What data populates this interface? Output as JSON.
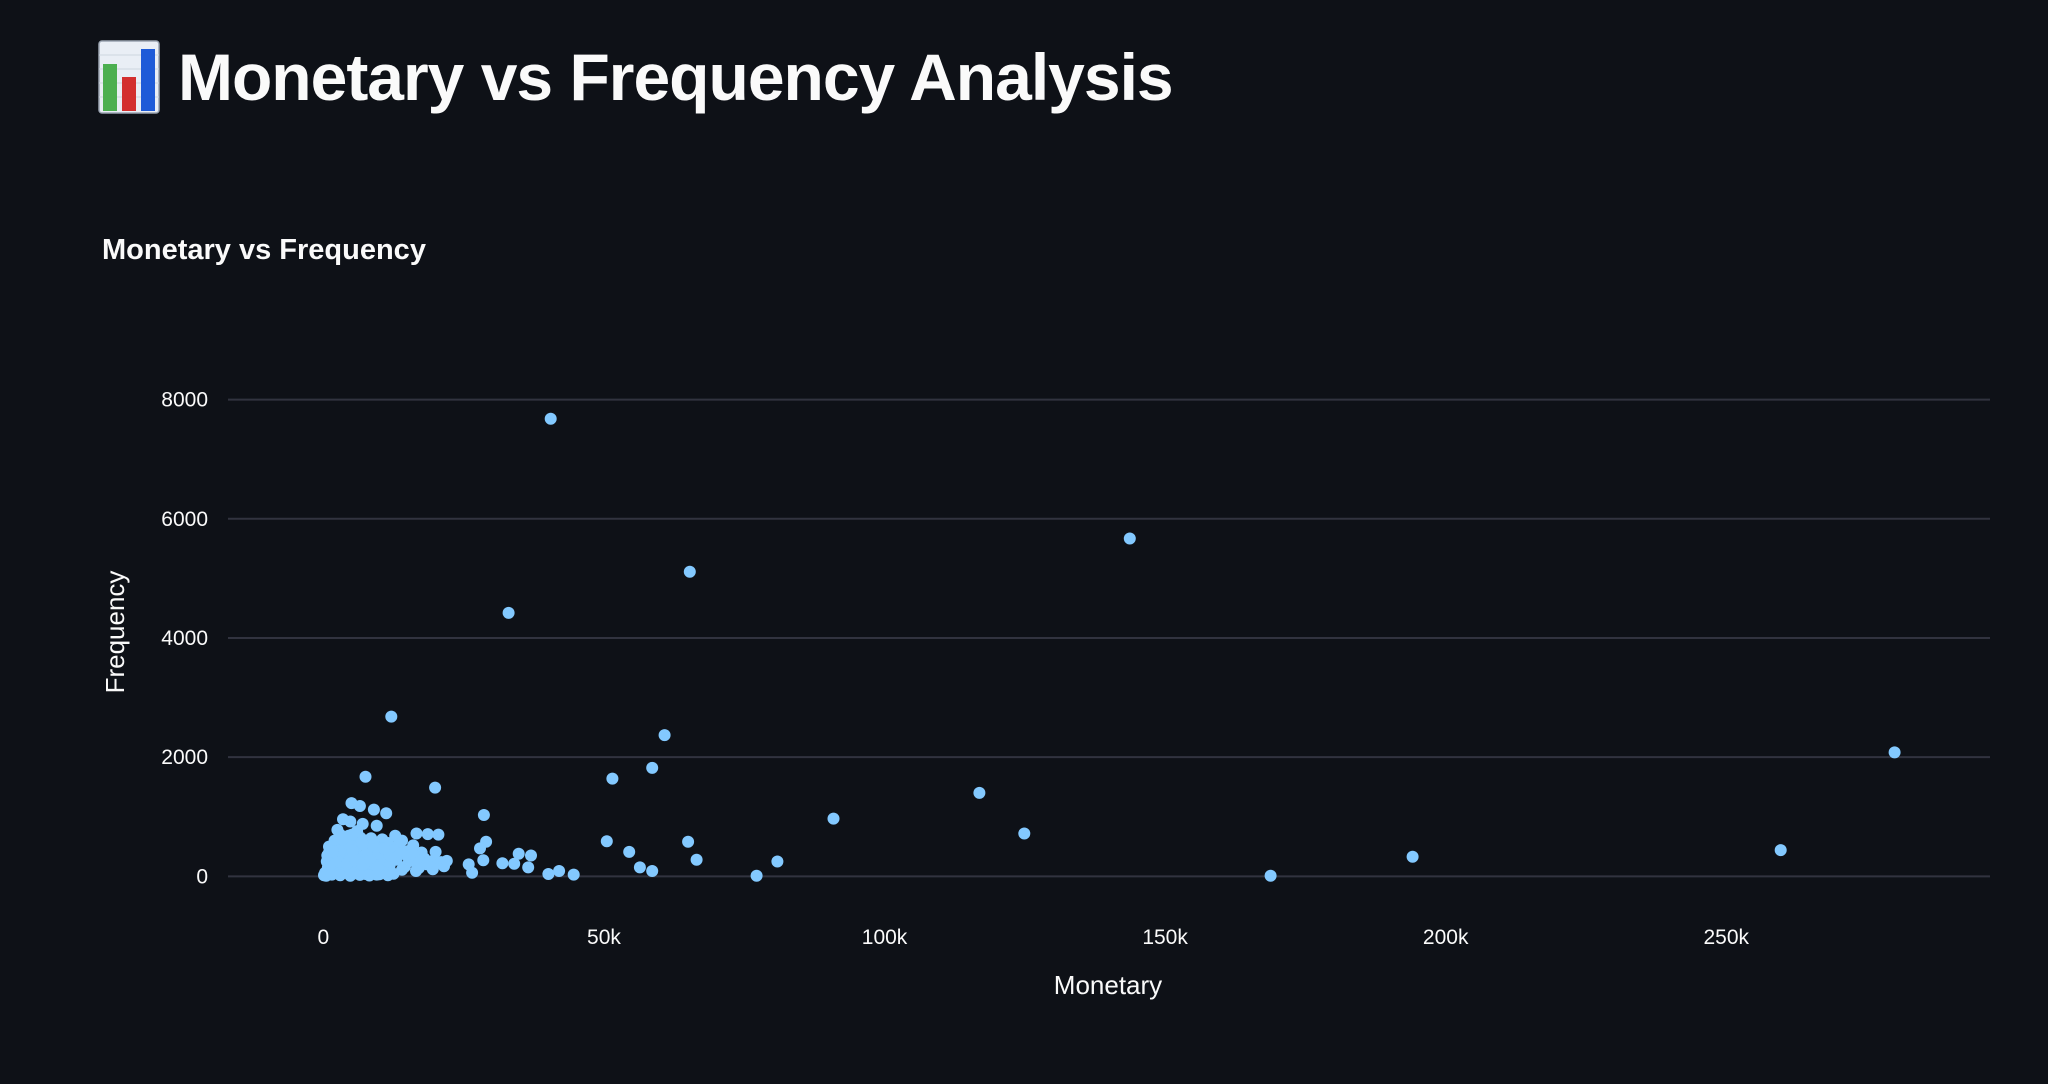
{
  "header": {
    "title": "Monetary vs Frequency Analysis",
    "emoji_icon": "bar-chart-icon"
  },
  "colors": {
    "background": "#0e1117",
    "text": "#fafafa",
    "gridline": "#31333f",
    "point": "#83c9ff",
    "emoji_green": "#4caf50",
    "emoji_red": "#d32f2f",
    "emoji_blue": "#1e5bd8"
  },
  "chart_data": {
    "type": "scatter",
    "title": "Monetary vs Frequency",
    "xlabel": "Monetary",
    "ylabel": "Frequency",
    "xlim": [
      -17000,
      297000
    ],
    "ylim": [
      -900,
      9000
    ],
    "x_ticks": [
      0,
      50000,
      100000,
      150000,
      200000,
      250000
    ],
    "x_tick_labels": [
      "0",
      "50k",
      "100k",
      "150k",
      "200k",
      "250k"
    ],
    "y_ticks": [
      0,
      2000,
      4000,
      6000,
      8000
    ],
    "y_tick_labels": [
      "0",
      "2000",
      "4000",
      "6000",
      "8000"
    ],
    "grid": true,
    "series": [
      {
        "points": [
          [
            40500,
            7680
          ],
          [
            143700,
            5670
          ],
          [
            65300,
            5110
          ],
          [
            33000,
            4420
          ],
          [
            12100,
            2680
          ],
          [
            60800,
            2370
          ],
          [
            280000,
            2080
          ],
          [
            58600,
            1820
          ],
          [
            7500,
            1670
          ],
          [
            51500,
            1640
          ],
          [
            19900,
            1490
          ],
          [
            116900,
            1400
          ],
          [
            5000,
            1230
          ],
          [
            6500,
            1180
          ],
          [
            9000,
            1120
          ],
          [
            11200,
            1060
          ],
          [
            28600,
            1030
          ],
          [
            90900,
            970
          ],
          [
            3500,
            960
          ],
          [
            4800,
            920
          ],
          [
            7000,
            880
          ],
          [
            9500,
            850
          ],
          [
            2500,
            780
          ],
          [
            124900,
            720
          ],
          [
            6000,
            760
          ],
          [
            16600,
            720
          ],
          [
            18600,
            710
          ],
          [
            20500,
            700
          ],
          [
            12800,
            680
          ],
          [
            3000,
            700
          ],
          [
            4500,
            680
          ],
          [
            8500,
            640
          ],
          [
            10500,
            620
          ],
          [
            14000,
            600
          ],
          [
            29000,
            580
          ],
          [
            50500,
            590
          ],
          [
            65000,
            580
          ],
          [
            2000,
            600
          ],
          [
            5500,
            620
          ],
          [
            7500,
            600
          ],
          [
            9000,
            580
          ],
          [
            11500,
            560
          ],
          [
            13500,
            540
          ],
          [
            16000,
            520
          ],
          [
            27900,
            470
          ],
          [
            1800,
            500
          ],
          [
            3800,
            520
          ],
          [
            6000,
            500
          ],
          [
            8000,
            480
          ],
          [
            10000,
            460
          ],
          [
            12500,
            440
          ],
          [
            15000,
            420
          ],
          [
            17500,
            400
          ],
          [
            20000,
            410
          ],
          [
            54500,
            410
          ],
          [
            259700,
            440
          ],
          [
            34800,
            380
          ],
          [
            37000,
            350
          ],
          [
            1000,
            400
          ],
          [
            2500,
            420
          ],
          [
            4200,
            380
          ],
          [
            5800,
            360
          ],
          [
            7200,
            340
          ],
          [
            9200,
            320
          ],
          [
            11000,
            300
          ],
          [
            13000,
            280
          ],
          [
            15500,
            260
          ],
          [
            18000,
            300
          ],
          [
            19800,
            280
          ],
          [
            194100,
            330
          ],
          [
            28500,
            270
          ],
          [
            66500,
            280
          ],
          [
            80900,
            250
          ],
          [
            21000,
            240
          ],
          [
            21500,
            170
          ],
          [
            25900,
            200
          ],
          [
            31900,
            220
          ],
          [
            34000,
            210
          ],
          [
            36500,
            150
          ],
          [
            56400,
            150
          ],
          [
            58600,
            90
          ],
          [
            42000,
            90
          ],
          [
            26500,
            60
          ],
          [
            600,
            250
          ],
          [
            1500,
            280
          ],
          [
            3000,
            300
          ],
          [
            4500,
            260
          ],
          [
            6200,
            240
          ],
          [
            8000,
            220
          ],
          [
            9800,
            200
          ],
          [
            11800,
            180
          ],
          [
            14500,
            160
          ],
          [
            17000,
            140
          ],
          [
            19500,
            120
          ],
          [
            800,
            150
          ],
          [
            2200,
            160
          ],
          [
            3600,
            180
          ],
          [
            5000,
            140
          ],
          [
            6800,
            120
          ],
          [
            8500,
            100
          ],
          [
            10500,
            80
          ],
          [
            12000,
            60
          ],
          [
            14000,
            110
          ],
          [
            16500,
            90
          ],
          [
            300,
            60
          ],
          [
            1200,
            80
          ],
          [
            2600,
            70
          ],
          [
            4000,
            60
          ],
          [
            5500,
            50
          ],
          [
            7500,
            40
          ],
          [
            9500,
            30
          ],
          [
            11500,
            20
          ],
          [
            40100,
            40
          ],
          [
            44600,
            30
          ],
          [
            77200,
            10
          ],
          [
            168800,
            10
          ],
          [
            100,
            20
          ],
          [
            500,
            10
          ],
          [
            1500,
            30
          ],
          [
            3000,
            20
          ],
          [
            4800,
            10
          ],
          [
            6500,
            25
          ],
          [
            8200,
            15
          ],
          [
            10000,
            35
          ],
          [
            12500,
            45
          ],
          [
            1000,
            500
          ],
          [
            2000,
            350
          ],
          [
            3200,
            450
          ],
          [
            4400,
            550
          ],
          [
            5200,
            430
          ],
          [
            6600,
            650
          ],
          [
            7800,
            420
          ],
          [
            8800,
            520
          ],
          [
            9800,
            380
          ],
          [
            10800,
            470
          ],
          [
            11800,
            350
          ],
          [
            12800,
            310
          ],
          [
            13800,
            390
          ],
          [
            15000,
            330
          ],
          [
            16000,
            370
          ],
          [
            17200,
            250
          ],
          [
            18500,
            200
          ],
          [
            22000,
            260
          ],
          [
            1400,
            200
          ],
          [
            2800,
            240
          ],
          [
            4200,
            210
          ],
          [
            5600,
            280
          ],
          [
            7000,
            190
          ],
          [
            8400,
            270
          ],
          [
            9600,
            150
          ],
          [
            700,
            350
          ],
          [
            1700,
            420
          ],
          [
            3400,
            620
          ],
          [
            5100,
            700
          ],
          [
            6900,
            560
          ]
        ]
      }
    ]
  }
}
